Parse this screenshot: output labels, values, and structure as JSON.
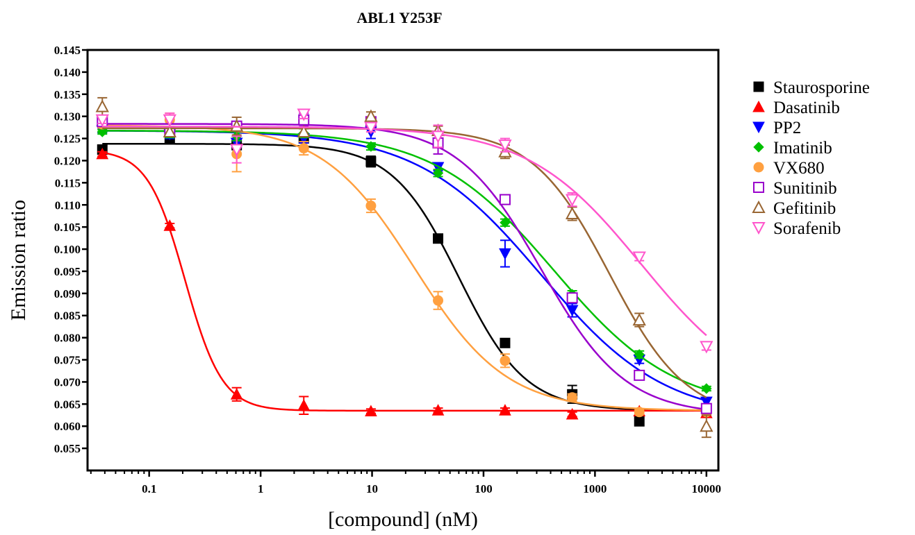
{
  "chart_data": {
    "type": "scatter",
    "title": "ABL1 Y253F",
    "xlabel": "[compound] (nM)",
    "ylabel": "Emission ratio",
    "xscale": "log",
    "xlim": [
      0.028,
      12800
    ],
    "ylim": [
      0.05,
      0.145
    ],
    "grid": false,
    "legend_position": "right",
    "x_ticks": [
      0.1,
      1,
      10,
      100,
      1000,
      10000
    ],
    "x_tick_labels": [
      "0.1",
      "1",
      "10",
      "100",
      "1000",
      "10000"
    ],
    "y_ticks": [
      0.055,
      0.06,
      0.065,
      0.07,
      0.075,
      0.08,
      0.085,
      0.09,
      0.095,
      0.1,
      0.105,
      0.11,
      0.115,
      0.12,
      0.125,
      0.13,
      0.135,
      0.14,
      0.145
    ],
    "y_tick_labels": [
      "0.055",
      "0.060",
      "0.065",
      "0.070",
      "0.075",
      "0.080",
      "0.085",
      "0.090",
      "0.095",
      "0.100",
      "0.105",
      "0.110",
      "0.115",
      "0.120",
      "0.125",
      "0.130",
      "0.135",
      "0.140",
      "0.145"
    ],
    "x": [
      0.038,
      0.153,
      0.61,
      2.44,
      9.77,
      39.1,
      156,
      625,
      2500,
      10000
    ],
    "series": [
      {
        "name": "Staurosporine",
        "color": "#000000",
        "marker": "square-filled",
        "values": [
          0.1225,
          0.1248,
          0.1235,
          0.125,
          0.1198,
          0.1024,
          0.0788,
          0.0672,
          0.0611,
          0.064
        ],
        "errors": [
          0.001,
          0.001,
          0.001,
          0.001,
          0.0012,
          0.0006,
          0.0005,
          0.002,
          0.0005,
          0.0005
        ],
        "fit": {
          "top": 0.1238,
          "bottom": 0.0635,
          "ec50": 60,
          "hill": 1.45
        }
      },
      {
        "name": "Dasatinib",
        "color": "#ff0000",
        "marker": "triangle-up-filled",
        "values": [
          0.1215,
          0.1053,
          0.0672,
          0.0647,
          0.0634,
          0.0636,
          0.0636,
          0.0627,
          0.0634,
          0.063
        ],
        "errors": [
          0.0005,
          0.0005,
          0.0015,
          0.002,
          0.0005,
          0.0005,
          0.0005,
          0.0005,
          0.0005,
          0.0005
        ],
        "fit": {
          "top": 0.1225,
          "bottom": 0.0635,
          "ec50": 0.21,
          "hill": 2.6
        }
      },
      {
        "name": "PP2",
        "color": "#0000ff",
        "marker": "triangle-down-filled",
        "values": [
          0.1268,
          0.126,
          0.124,
          0.125,
          0.1265,
          0.1185,
          0.099,
          0.0862,
          0.075,
          0.0655
        ],
        "errors": [
          0.0005,
          0.001,
          0.001,
          0.001,
          0.0015,
          0.0008,
          0.003,
          0.0015,
          0.0008,
          0.0008
        ],
        "fit": {
          "top": 0.1268,
          "bottom": 0.0615,
          "ec50": 330,
          "hill": 0.78
        }
      },
      {
        "name": "Imatinib",
        "color": "#00c000",
        "marker": "diamond-filled",
        "values": [
          0.1265,
          0.1262,
          0.1255,
          0.1262,
          0.1232,
          0.1172,
          0.106,
          0.0898,
          0.0762,
          0.0685
        ],
        "errors": [
          0.0005,
          0.001,
          0.001,
          0.001,
          0.0008,
          0.0008,
          0.0008,
          0.0008,
          0.0008,
          0.0005
        ],
        "fit": {
          "top": 0.1268,
          "bottom": 0.0635,
          "ec50": 430,
          "hill": 0.8
        }
      },
      {
        "name": "VX680",
        "color": "#ffa040",
        "marker": "circle-filled",
        "values": [
          0.1282,
          0.1292,
          0.1215,
          0.1228,
          0.1098,
          0.0884,
          0.0748,
          0.0665,
          0.0632,
          0.0632
        ],
        "errors": [
          0.0008,
          0.0015,
          0.004,
          0.0015,
          0.0015,
          0.002,
          0.0015,
          0.0008,
          0.0005,
          0.0005
        ],
        "fit": {
          "top": 0.128,
          "bottom": 0.0635,
          "ec50": 24,
          "hill": 1.05
        }
      },
      {
        "name": "Sunitinib",
        "color": "#9900cc",
        "marker": "square-open",
        "values": [
          0.1288,
          0.1265,
          0.1278,
          0.1292,
          0.1288,
          0.124,
          0.1112,
          0.089,
          0.0715,
          0.064
        ],
        "errors": [
          0.0008,
          0.001,
          0.001,
          0.0015,
          0.001,
          0.0025,
          0.001,
          0.001,
          0.0008,
          0.001
        ],
        "fit": {
          "top": 0.1283,
          "bottom": 0.0625,
          "ec50": 330,
          "hill": 1.15
        }
      },
      {
        "name": "Gefitinib",
        "color": "#996633",
        "marker": "triangle-up-open",
        "values": [
          0.1322,
          0.1265,
          0.1278,
          0.1265,
          0.13,
          0.1268,
          0.122,
          0.108,
          0.084,
          0.06
        ],
        "errors": [
          0.002,
          0.001,
          0.002,
          0.001,
          0.001,
          0.001,
          0.0015,
          0.0015,
          0.0015,
          0.0025
        ],
        "fit": {
          "top": 0.1273,
          "bottom": 0.0615,
          "ec50": 1350,
          "hill": 1.25
        }
      },
      {
        "name": "Sorafenib",
        "color": "#ff55cc",
        "marker": "triangle-down-open",
        "values": [
          0.1292,
          0.1292,
          0.1225,
          0.1305,
          0.1275,
          0.1255,
          0.1235,
          0.1112,
          0.0982,
          0.078
        ],
        "errors": [
          0.0008,
          0.0015,
          0.003,
          0.001,
          0.001,
          0.0025,
          0.0015,
          0.0015,
          0.0008,
          0.0008
        ],
        "fit": {
          "top": 0.1277,
          "bottom": 0.0655,
          "ec50": 2600,
          "hill": 0.85
        }
      }
    ]
  }
}
